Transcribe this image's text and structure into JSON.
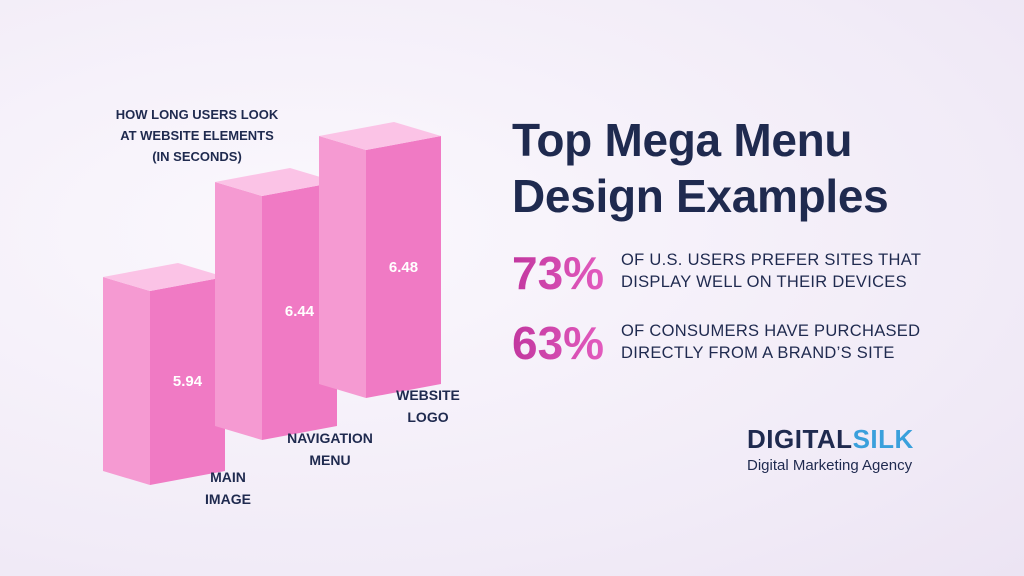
{
  "chart_data": {
    "type": "bar",
    "title": "HOW LONG USERS LOOK AT WEBSITE ELEMENTS (IN SECONDS)",
    "categories": [
      "MAIN IMAGE",
      "NAVIGATION MENU",
      "WEBSITE LOGO"
    ],
    "values": [
      5.94,
      6.44,
      6.48
    ],
    "color": "#f07ac4"
  },
  "header": {
    "title": "Top Mega Menu Design Examples"
  },
  "stats": [
    {
      "figure": "73%",
      "text": "OF U.S. USERS PREFER SITES THAT DISPLAY WELL ON THEIR DEVICES"
    },
    {
      "figure": "63%",
      "text": "OF CONSUMERS HAVE PURCHASED DIRECTLY FROM A BRAND’S SITE"
    }
  ],
  "brand": {
    "name_a": "DIGITAL",
    "name_b": "SILK",
    "tagline": "Digital Marketing Agency"
  }
}
